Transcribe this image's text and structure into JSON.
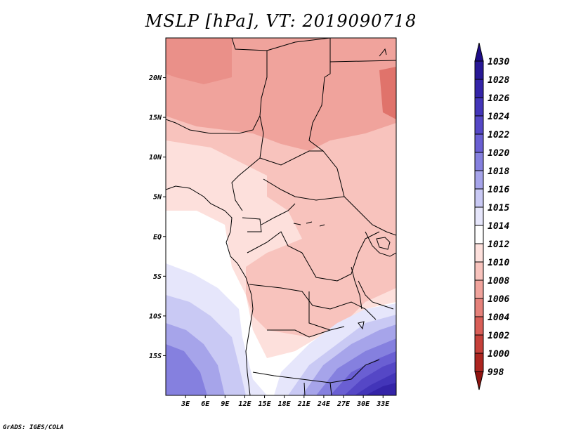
{
  "title": "MSLP [hPa], VT: 2019090718",
  "footer": "GrADS: IGES/COLA",
  "map": {
    "lon_range": [
      0,
      35
    ],
    "lat_range": [
      -20,
      25
    ],
    "lat_labels": [
      "20N",
      "15N",
      "10N",
      "5N",
      "EQ",
      "5S",
      "10S",
      "15S"
    ],
    "lat_values": [
      20,
      15,
      10,
      5,
      0,
      -5,
      -10,
      -15
    ],
    "lon_labels": [
      "3E",
      "6E",
      "9E",
      "12E",
      "15E",
      "18E",
      "21E",
      "24E",
      "27E",
      "30E",
      "33E"
    ],
    "lon_values": [
      3,
      6,
      9,
      12,
      15,
      18,
      21,
      24,
      27,
      30,
      33
    ]
  },
  "colorbar": {
    "labels": [
      "1030",
      "1028",
      "1026",
      "1024",
      "1022",
      "1020",
      "1018",
      "1016",
      "1015",
      "1014",
      "1012",
      "1010",
      "1008",
      "1006",
      "1004",
      "1002",
      "1000",
      "998"
    ],
    "colors": [
      "#1e0c87",
      "#281896",
      "#3424a8",
      "#4335b9",
      "#5547c6",
      "#6a5fd3",
      "#8580df",
      "#a6a4ea",
      "#c9c9f4",
      "#e6e6fb",
      "#ffffff",
      "#fde0dc",
      "#f8c3bd",
      "#f0a39c",
      "#e5817a",
      "#d95e57",
      "#c6403a",
      "#ad2520",
      "#8f1410"
    ]
  }
}
